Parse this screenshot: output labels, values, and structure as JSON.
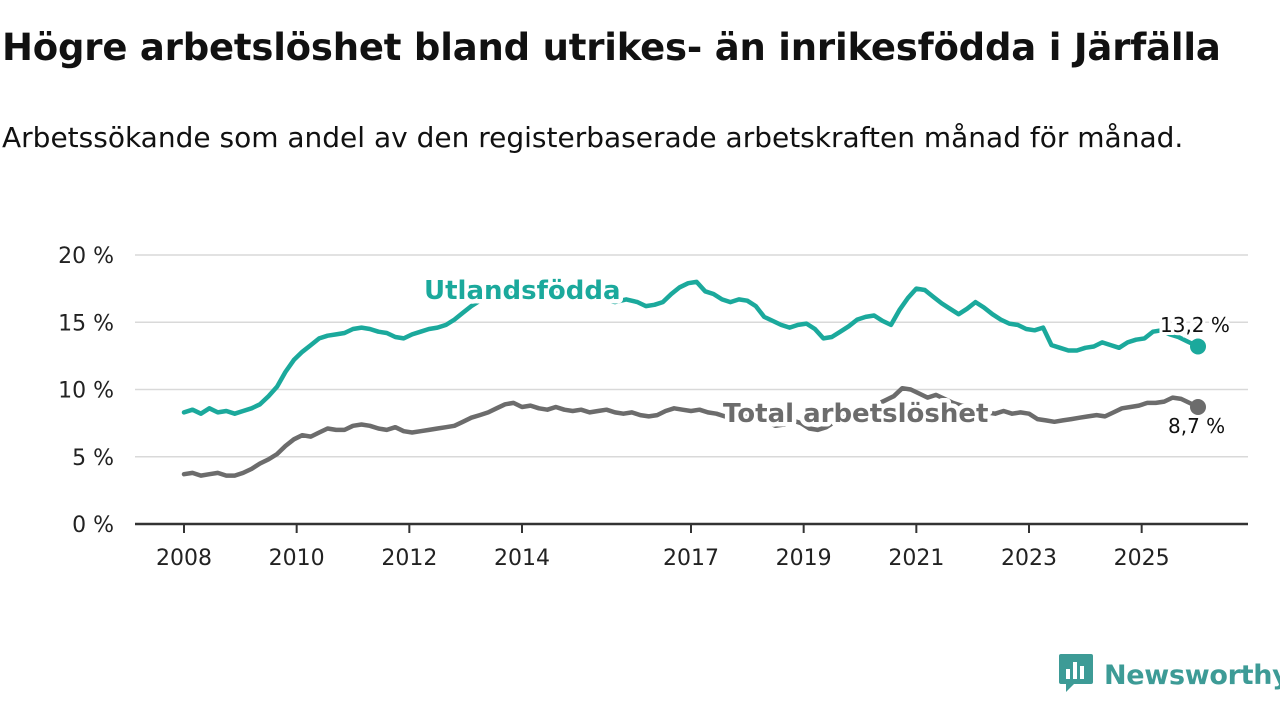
{
  "colors": {
    "foreign": "#1ba99c",
    "total": "#6c6c6c",
    "grid": "#d9d9d9",
    "axis": "#333333",
    "text": "#111111",
    "brand": "#3d9b96"
  },
  "brand": {
    "name": "Newsworthy",
    "icon": "bar-chart-speech-icon"
  },
  "chart_data": {
    "type": "line",
    "title": "Högre arbetslöshet bland utrikes- än inrikesfödda i Järfälla",
    "subtitle": "Arbetssökande som andel av den registerbaserade arbetskraften månad för månad.",
    "xlabel": "",
    "ylabel": "",
    "xlim": [
      2008.0,
      2026.0
    ],
    "ylim": [
      0,
      20
    ],
    "y_ticks": [
      0,
      5,
      10,
      15,
      20
    ],
    "y_tick_labels": [
      "0 %",
      "5 %",
      "10 %",
      "15 %",
      "20 %"
    ],
    "x_ticks": [
      2008,
      2010,
      2012,
      2014,
      2017,
      2019,
      2021,
      2023,
      2025
    ],
    "x_tick_labels": [
      "2008",
      "2010",
      "2012",
      "2014",
      "2017",
      "2019",
      "2021",
      "2023",
      "2025"
    ],
    "grid": true,
    "series": [
      {
        "name": "Utlandsfödda",
        "label": "Utlandsfödda",
        "end_label": "13,2 %",
        "points": [
          [
            2008.0,
            8.3
          ],
          [
            2008.15,
            8.5
          ],
          [
            2008.3,
            8.2
          ],
          [
            2008.45,
            8.6
          ],
          [
            2008.6,
            8.3
          ],
          [
            2008.75,
            8.4
          ],
          [
            2008.9,
            8.2
          ],
          [
            2009.05,
            8.4
          ],
          [
            2009.2,
            8.6
          ],
          [
            2009.35,
            8.9
          ],
          [
            2009.5,
            9.5
          ],
          [
            2009.65,
            10.2
          ],
          [
            2009.8,
            11.3
          ],
          [
            2009.95,
            12.2
          ],
          [
            2010.1,
            12.8
          ],
          [
            2010.25,
            13.3
          ],
          [
            2010.4,
            13.8
          ],
          [
            2010.55,
            14.0
          ],
          [
            2010.7,
            14.1
          ],
          [
            2010.85,
            14.2
          ],
          [
            2011.0,
            14.5
          ],
          [
            2011.15,
            14.6
          ],
          [
            2011.3,
            14.5
          ],
          [
            2011.45,
            14.3
          ],
          [
            2011.6,
            14.2
          ],
          [
            2011.75,
            13.9
          ],
          [
            2011.9,
            13.8
          ],
          [
            2012.05,
            14.1
          ],
          [
            2012.2,
            14.3
          ],
          [
            2012.35,
            14.5
          ],
          [
            2012.5,
            14.6
          ],
          [
            2012.65,
            14.8
          ],
          [
            2012.8,
            15.2
          ],
          [
            2012.95,
            15.7
          ],
          [
            2013.1,
            16.2
          ],
          [
            2013.25,
            16.6
          ],
          [
            2013.45,
            17.0
          ],
          [
            2013.65,
            17.2
          ],
          [
            2013.85,
            17.4
          ],
          [
            2014.05,
            17.3
          ],
          [
            2014.25,
            17.5
          ],
          [
            2014.45,
            17.2
          ],
          [
            2014.65,
            17.3
          ],
          [
            2014.85,
            17.1
          ],
          [
            2015.05,
            16.8
          ],
          [
            2015.25,
            16.6
          ],
          [
            2015.45,
            16.7
          ],
          [
            2015.65,
            16.5
          ],
          [
            2015.85,
            16.7
          ],
          [
            2016.05,
            16.5
          ],
          [
            2016.2,
            16.2
          ],
          [
            2016.35,
            16.3
          ],
          [
            2016.5,
            16.5
          ],
          [
            2016.65,
            17.1
          ],
          [
            2016.8,
            17.6
          ],
          [
            2016.95,
            17.9
          ],
          [
            2017.1,
            18.0
          ],
          [
            2017.25,
            17.3
          ],
          [
            2017.4,
            17.1
          ],
          [
            2017.55,
            16.7
          ],
          [
            2017.7,
            16.5
          ],
          [
            2017.85,
            16.7
          ],
          [
            2018.0,
            16.6
          ],
          [
            2018.15,
            16.2
          ],
          [
            2018.3,
            15.4
          ],
          [
            2018.45,
            15.1
          ],
          [
            2018.6,
            14.8
          ],
          [
            2018.75,
            14.6
          ],
          [
            2018.9,
            14.8
          ],
          [
            2019.05,
            14.9
          ],
          [
            2019.2,
            14.5
          ],
          [
            2019.35,
            13.8
          ],
          [
            2019.5,
            13.9
          ],
          [
            2019.65,
            14.3
          ],
          [
            2019.8,
            14.7
          ],
          [
            2019.95,
            15.2
          ],
          [
            2020.1,
            15.4
          ],
          [
            2020.25,
            15.5
          ],
          [
            2020.4,
            15.1
          ],
          [
            2020.55,
            14.8
          ],
          [
            2020.7,
            15.9
          ],
          [
            2020.85,
            16.8
          ],
          [
            2021.0,
            17.5
          ],
          [
            2021.15,
            17.4
          ],
          [
            2021.3,
            16.9
          ],
          [
            2021.45,
            16.4
          ],
          [
            2021.6,
            16.0
          ],
          [
            2021.75,
            15.6
          ],
          [
            2021.9,
            16.0
          ],
          [
            2022.05,
            16.5
          ],
          [
            2022.2,
            16.1
          ],
          [
            2022.35,
            15.6
          ],
          [
            2022.5,
            15.2
          ],
          [
            2022.65,
            14.9
          ],
          [
            2022.8,
            14.8
          ],
          [
            2022.95,
            14.5
          ],
          [
            2023.1,
            14.4
          ],
          [
            2023.25,
            14.6
          ],
          [
            2023.4,
            13.3
          ],
          [
            2023.55,
            13.1
          ],
          [
            2023.7,
            12.9
          ],
          [
            2023.85,
            12.9
          ],
          [
            2024.0,
            13.1
          ],
          [
            2024.15,
            13.2
          ],
          [
            2024.3,
            13.5
          ],
          [
            2024.45,
            13.3
          ],
          [
            2024.6,
            13.1
          ],
          [
            2024.75,
            13.5
          ],
          [
            2024.9,
            13.7
          ],
          [
            2025.05,
            13.8
          ],
          [
            2025.2,
            14.3
          ],
          [
            2025.35,
            14.4
          ],
          [
            2025.5,
            14.1
          ],
          [
            2025.65,
            13.9
          ],
          [
            2025.8,
            13.6
          ],
          [
            2025.95,
            13.3
          ],
          [
            2026.0,
            13.2
          ]
        ]
      },
      {
        "name": "Total arbetslöshet",
        "label": "Total arbetslöshet",
        "end_label": "8,7 %",
        "points": [
          [
            2008.0,
            3.7
          ],
          [
            2008.15,
            3.8
          ],
          [
            2008.3,
            3.6
          ],
          [
            2008.45,
            3.7
          ],
          [
            2008.6,
            3.8
          ],
          [
            2008.75,
            3.6
          ],
          [
            2008.9,
            3.6
          ],
          [
            2009.05,
            3.8
          ],
          [
            2009.2,
            4.1
          ],
          [
            2009.35,
            4.5
          ],
          [
            2009.5,
            4.8
          ],
          [
            2009.65,
            5.2
          ],
          [
            2009.8,
            5.8
          ],
          [
            2009.95,
            6.3
          ],
          [
            2010.1,
            6.6
          ],
          [
            2010.25,
            6.5
          ],
          [
            2010.4,
            6.8
          ],
          [
            2010.55,
            7.1
          ],
          [
            2010.7,
            7.0
          ],
          [
            2010.85,
            7.0
          ],
          [
            2011.0,
            7.3
          ],
          [
            2011.15,
            7.4
          ],
          [
            2011.3,
            7.3
          ],
          [
            2011.45,
            7.1
          ],
          [
            2011.6,
            7.0
          ],
          [
            2011.75,
            7.2
          ],
          [
            2011.9,
            6.9
          ],
          [
            2012.05,
            6.8
          ],
          [
            2012.2,
            6.9
          ],
          [
            2012.35,
            7.0
          ],
          [
            2012.5,
            7.1
          ],
          [
            2012.65,
            7.2
          ],
          [
            2012.8,
            7.3
          ],
          [
            2012.95,
            7.6
          ],
          [
            2013.1,
            7.9
          ],
          [
            2013.25,
            8.1
          ],
          [
            2013.4,
            8.3
          ],
          [
            2013.55,
            8.6
          ],
          [
            2013.7,
            8.9
          ],
          [
            2013.85,
            9.0
          ],
          [
            2014.0,
            8.7
          ],
          [
            2014.15,
            8.8
          ],
          [
            2014.3,
            8.6
          ],
          [
            2014.45,
            8.5
          ],
          [
            2014.6,
            8.7
          ],
          [
            2014.75,
            8.5
          ],
          [
            2014.9,
            8.4
          ],
          [
            2015.05,
            8.5
          ],
          [
            2015.2,
            8.3
          ],
          [
            2015.35,
            8.4
          ],
          [
            2015.5,
            8.5
          ],
          [
            2015.65,
            8.3
          ],
          [
            2015.8,
            8.2
          ],
          [
            2015.95,
            8.3
          ],
          [
            2016.1,
            8.1
          ],
          [
            2016.25,
            8.0
          ],
          [
            2016.4,
            8.1
          ],
          [
            2016.55,
            8.4
          ],
          [
            2016.7,
            8.6
          ],
          [
            2016.85,
            8.5
          ],
          [
            2017.0,
            8.4
          ],
          [
            2017.15,
            8.5
          ],
          [
            2017.3,
            8.3
          ],
          [
            2017.45,
            8.2
          ],
          [
            2017.6,
            8.0
          ],
          [
            2017.75,
            8.3
          ],
          [
            2017.9,
            8.2
          ],
          [
            2018.05,
            8.0
          ],
          [
            2018.2,
            7.8
          ],
          [
            2018.35,
            7.6
          ],
          [
            2018.5,
            7.3
          ],
          [
            2018.65,
            7.4
          ],
          [
            2018.8,
            7.7
          ],
          [
            2018.95,
            7.5
          ],
          [
            2019.1,
            7.1
          ],
          [
            2019.25,
            7.0
          ],
          [
            2019.4,
            7.2
          ],
          [
            2019.55,
            7.6
          ],
          [
            2019.7,
            7.9
          ],
          [
            2019.85,
            8.2
          ],
          [
            2020.0,
            8.4
          ],
          [
            2020.15,
            8.6
          ],
          [
            2020.3,
            8.9
          ],
          [
            2020.45,
            9.2
          ],
          [
            2020.6,
            9.5
          ],
          [
            2020.75,
            10.1
          ],
          [
            2020.9,
            10.0
          ],
          [
            2021.05,
            9.7
          ],
          [
            2021.2,
            9.4
          ],
          [
            2021.35,
            9.6
          ],
          [
            2021.5,
            9.3
          ],
          [
            2021.65,
            9.0
          ],
          [
            2021.8,
            8.8
          ],
          [
            2021.95,
            8.7
          ],
          [
            2022.1,
            8.5
          ],
          [
            2022.25,
            8.3
          ],
          [
            2022.4,
            8.2
          ],
          [
            2022.55,
            8.4
          ],
          [
            2022.7,
            8.2
          ],
          [
            2022.85,
            8.3
          ],
          [
            2023.0,
            8.2
          ],
          [
            2023.15,
            7.8
          ],
          [
            2023.3,
            7.7
          ],
          [
            2023.45,
            7.6
          ],
          [
            2023.6,
            7.7
          ],
          [
            2023.75,
            7.8
          ],
          [
            2023.9,
            7.9
          ],
          [
            2024.05,
            8.0
          ],
          [
            2024.2,
            8.1
          ],
          [
            2024.35,
            8.0
          ],
          [
            2024.5,
            8.3
          ],
          [
            2024.65,
            8.6
          ],
          [
            2024.8,
            8.7
          ],
          [
            2024.95,
            8.8
          ],
          [
            2025.1,
            9.0
          ],
          [
            2025.25,
            9.0
          ],
          [
            2025.4,
            9.1
          ],
          [
            2025.55,
            9.4
          ],
          [
            2025.7,
            9.3
          ],
          [
            2025.85,
            9.0
          ],
          [
            2026.0,
            8.7
          ]
        ]
      }
    ]
  }
}
